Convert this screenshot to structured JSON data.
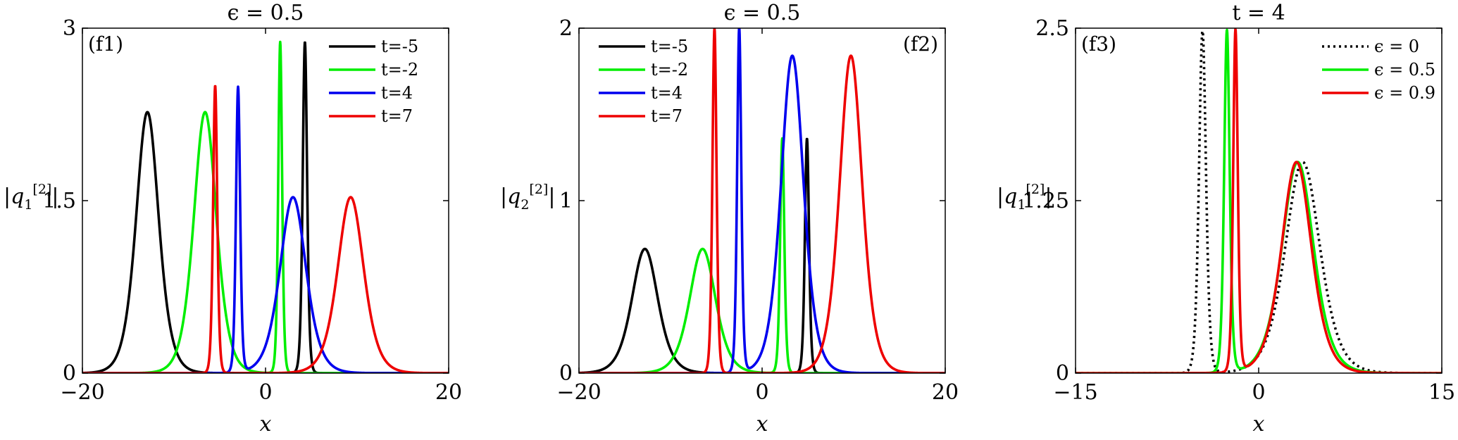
{
  "figure_tag": "Figure: three panels of |q_j^[2]| versus x",
  "chart_data": [
    {
      "type": "line",
      "panel": "(f1)",
      "title": "ϵ = 0.5",
      "xlabel": "x",
      "ylabel": {
        "base": "|q",
        "sub": "1",
        "sup": "[2]",
        "close": "|"
      },
      "xlim": [
        -20,
        20
      ],
      "ylim": [
        0,
        3
      ],
      "xticks": [
        -20,
        0,
        20
      ],
      "xtick_labels": [
        "−20",
        "0",
        "20"
      ],
      "yticks": [
        0,
        1.5,
        3
      ],
      "ytick_labels": [
        "0",
        "1.5",
        "3"
      ],
      "legend_position": "top-right",
      "series": [
        {
          "name": "t=-5",
          "color": "#000000",
          "components": [
            {
              "kind": "sech2",
              "center": -12.9,
              "amp": 2.27,
              "width": 1.65
            },
            {
              "kind": "sech2",
              "center": 4.3,
              "amp": 2.88,
              "width": 0.32
            }
          ]
        },
        {
          "name": "t=-2",
          "color": "#00ee00",
          "components": [
            {
              "kind": "sech2",
              "center": -6.6,
              "amp": 2.27,
              "width": 1.65
            },
            {
              "kind": "sech2",
              "center": 1.6,
              "amp": 2.88,
              "width": 0.28
            }
          ]
        },
        {
          "name": "t=4",
          "color": "#0000ee",
          "components": [
            {
              "kind": "sech2",
              "center": 3.0,
              "amp": 1.53,
              "width": 1.9
            },
            {
              "kind": "sech2",
              "center": -3.0,
              "amp": 2.48,
              "width": 0.3
            }
          ]
        },
        {
          "name": "t=7",
          "color": "#ee0000",
          "components": [
            {
              "kind": "sech2",
              "center": 9.3,
              "amp": 1.53,
              "width": 1.9
            },
            {
              "kind": "sech2",
              "center": -5.5,
              "amp": 2.5,
              "width": 0.3
            }
          ]
        }
      ]
    },
    {
      "type": "line",
      "panel": "(f2)",
      "title": "ϵ = 0.5",
      "xlabel": "x",
      "ylabel": {
        "base": "|q",
        "sub": "2",
        "sup": "[2]",
        "close": "|"
      },
      "xlim": [
        -20,
        20
      ],
      "ylim": [
        0,
        2
      ],
      "xticks": [
        -20,
        0,
        20
      ],
      "xtick_labels": [
        "−20",
        "0",
        "20"
      ],
      "yticks": [
        0,
        1,
        2
      ],
      "ytick_labels": [
        "0",
        "1",
        "2"
      ],
      "legend_position": "top-left",
      "series": [
        {
          "name": "t=-5",
          "color": "#000000",
          "components": [
            {
              "kind": "sech2",
              "center": -12.8,
              "amp": 0.72,
              "width": 1.9
            },
            {
              "kind": "sech2",
              "center": 4.9,
              "amp": 1.36,
              "width": 0.3
            }
          ]
        },
        {
          "name": "t=-2",
          "color": "#00ee00",
          "components": [
            {
              "kind": "sech2",
              "center": -6.5,
              "amp": 0.72,
              "width": 1.9
            },
            {
              "kind": "sech2",
              "center": 2.2,
              "amp": 1.36,
              "width": 0.3
            }
          ]
        },
        {
          "name": "t=4",
          "color": "#0000ee",
          "components": [
            {
              "kind": "sech2",
              "center": 3.3,
              "amp": 1.84,
              "width": 1.65
            },
            {
              "kind": "sech2",
              "center": -2.5,
              "amp": 2.0,
              "width": 0.3
            }
          ]
        },
        {
          "name": "t=7",
          "color": "#ee0000",
          "components": [
            {
              "kind": "sech2",
              "center": 9.7,
              "amp": 1.84,
              "width": 1.65
            },
            {
              "kind": "sech2",
              "center": -5.2,
              "amp": 2.0,
              "width": 0.3
            }
          ]
        }
      ]
    },
    {
      "type": "line",
      "panel": "(f3)",
      "title": "t = 4",
      "xlabel": "x",
      "ylabel": {
        "base": "|q",
        "sub": "1",
        "sup": "[2]",
        "close": "|"
      },
      "xlim": [
        -15,
        15
      ],
      "ylim": [
        0,
        2.5
      ],
      "xticks": [
        -15,
        0,
        15
      ],
      "xtick_labels": [
        "−15",
        "0",
        "15"
      ],
      "yticks": [
        0,
        1.25,
        2.5
      ],
      "ytick_labels": [
        "0",
        "1.25",
        "2.5"
      ],
      "legend_position": "top-right",
      "series": [
        {
          "name": "ϵ = 0",
          "color": "#000000",
          "dashed": true,
          "components": [
            {
              "kind": "sech2",
              "center": 3.6,
              "amp": 1.53,
              "width": 1.9
            },
            {
              "kind": "sech2",
              "center": -4.6,
              "amp": 2.48,
              "width": 0.38
            }
          ]
        },
        {
          "name": "ϵ = 0.5",
          "color": "#00ee00",
          "components": [
            {
              "kind": "sech2",
              "center": 3.2,
              "amp": 1.53,
              "width": 1.75
            },
            {
              "kind": "sech2",
              "center": -2.6,
              "amp": 2.48,
              "width": 0.3
            }
          ]
        },
        {
          "name": "ϵ = 0.9",
          "color": "#ee0000",
          "components": [
            {
              "kind": "sech2",
              "center": 3.1,
              "amp": 1.53,
              "width": 1.65
            },
            {
              "kind": "sech2",
              "center": -1.9,
              "amp": 2.48,
              "width": 0.25
            }
          ]
        }
      ]
    }
  ]
}
